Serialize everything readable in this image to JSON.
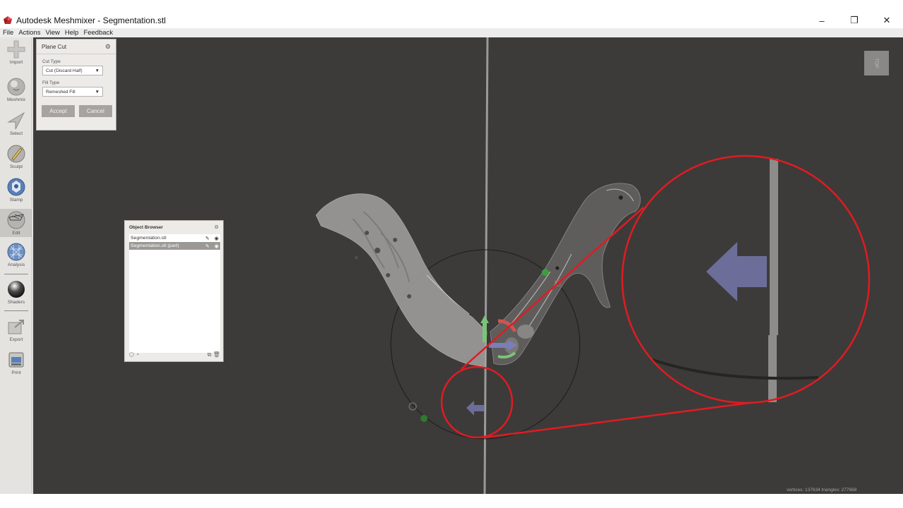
{
  "window": {
    "title": "Autodesk Meshmixer - Segmentation.stl",
    "minimize": "–",
    "restore": "❐",
    "close": "✕"
  },
  "menu": [
    "File",
    "Actions",
    "View",
    "Help",
    "Feedback"
  ],
  "toolbar": [
    {
      "label": "Import",
      "icon": "import-icon"
    },
    {
      "label": "Meshmix",
      "icon": "meshmix-icon"
    },
    {
      "label": "Select",
      "icon": "select-icon"
    },
    {
      "label": "Sculpt",
      "icon": "sculpt-icon"
    },
    {
      "label": "Stamp",
      "icon": "stamp-icon"
    },
    {
      "label": "Edit",
      "icon": "edit-icon",
      "active": true
    },
    {
      "label": "Analysis",
      "icon": "analysis-icon"
    },
    {
      "label": "Shaders",
      "icon": "shaders-icon"
    },
    {
      "label": "Export",
      "icon": "export-icon"
    },
    {
      "label": "Print",
      "icon": "print-icon"
    }
  ],
  "plane_cut": {
    "title": "Plane Cut",
    "cut_type_label": "Cut Type",
    "cut_type_value": "Cut (Discard Half)",
    "fill_type_label": "Fill Type",
    "fill_type_value": "Remeshed Fill",
    "accept": "Accept",
    "cancel": "Cancel"
  },
  "object_browser": {
    "title": "Object Browser",
    "items": [
      {
        "name": "Segmentation.stl",
        "selected": false
      },
      {
        "name": "Segmentation.stl (part)",
        "selected": true
      }
    ]
  },
  "viewcube": {
    "label": "TOP"
  },
  "status": {
    "text": "vertices: 137634 triangles: 277668"
  },
  "colors": {
    "viewport_bg": "#3c3b39",
    "annotation_red": "#e11b22",
    "arrow_purple": "#6c6e99",
    "plane_gray": "#9a9a9a"
  }
}
